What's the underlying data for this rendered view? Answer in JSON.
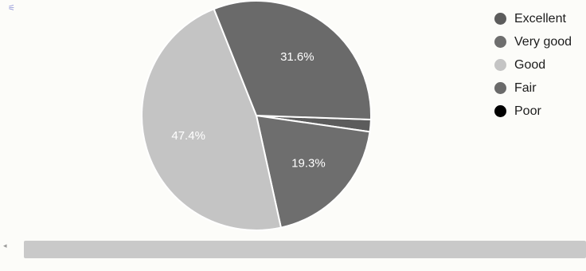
{
  "corner_mark": "⚟",
  "scroll_arrow": "◂",
  "chart_data": {
    "type": "pie",
    "title": "",
    "slices": [
      {
        "label": "Excellent",
        "value": 1.7,
        "color": "#5c5c5c",
        "data_label": ""
      },
      {
        "label": "Very good",
        "value": 19.3,
        "color": "#6e6e6e",
        "data_label": "19.3%"
      },
      {
        "label": "Good",
        "value": 47.4,
        "color": "#c4c4c4",
        "data_label": "47.4%"
      },
      {
        "label": "Fair",
        "value": 31.6,
        "color": "#6a6a6a",
        "data_label": "31.6%"
      },
      {
        "label": "Poor",
        "value": 0,
        "color": "#000000",
        "data_label": ""
      }
    ],
    "legend": {
      "position": "top-right",
      "items": [
        "Excellent",
        "Very good",
        "Good",
        "Fair",
        "Poor"
      ]
    }
  }
}
